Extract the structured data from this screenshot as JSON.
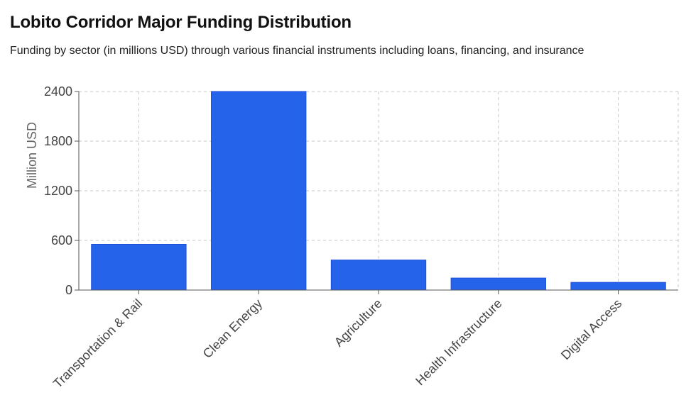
{
  "header": {
    "title": "Lobito Corridor Major Funding Distribution",
    "subtitle": "Funding by sector (in millions USD) through various financial instruments including loans, financing, and insurance"
  },
  "colors": {
    "bar": "#2563eb",
    "bar_stroke": "#1d4ed8"
  },
  "chart_data": {
    "type": "bar",
    "title": "Lobito Corridor Major Funding Distribution",
    "subtitle": "Funding by sector (in millions USD) through various financial instruments including loans, financing, and insurance",
    "categories": [
      "Transportation & Rail",
      "Clean Energy",
      "Agriculture",
      "Health Infrastructure",
      "Digital Access"
    ],
    "values": [
      553,
      2400,
      363,
      145,
      93
    ],
    "xlabel": "",
    "ylabel": "Million USD",
    "ylim": [
      0,
      2400
    ],
    "yticks": [
      0,
      600,
      1200,
      1800,
      2400
    ],
    "grid": true,
    "legend": "none"
  }
}
